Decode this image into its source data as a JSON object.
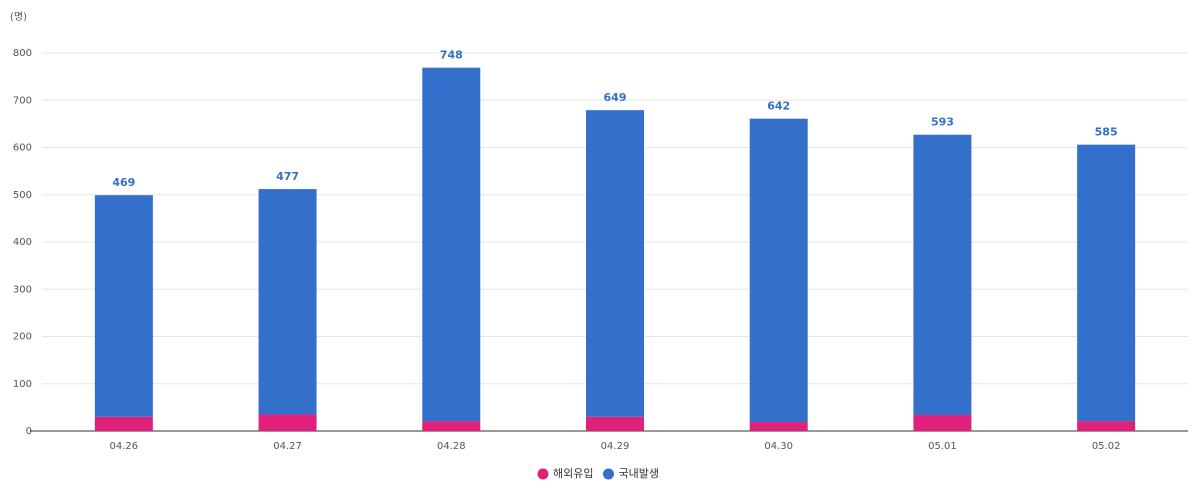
{
  "chart_data": {
    "type": "stacked_bar",
    "unit_label": "(명)",
    "categories": [
      "04.26",
      "04.27",
      "04.28",
      "04.29",
      "04.30",
      "05.01",
      "05.02"
    ],
    "series": [
      {
        "name": "해외유입",
        "color": "#e0207a",
        "values": [
          30,
          35,
          21,
          30,
          19,
          34,
          21
        ]
      },
      {
        "name": "국내발생",
        "color": "#3370cc",
        "values": [
          469,
          477,
          748,
          649,
          642,
          593,
          585
        ]
      }
    ],
    "ylim": [
      0,
      800
    ],
    "yticks": [
      0,
      100,
      200,
      300,
      400,
      500,
      600,
      700,
      800
    ],
    "grid": true
  }
}
